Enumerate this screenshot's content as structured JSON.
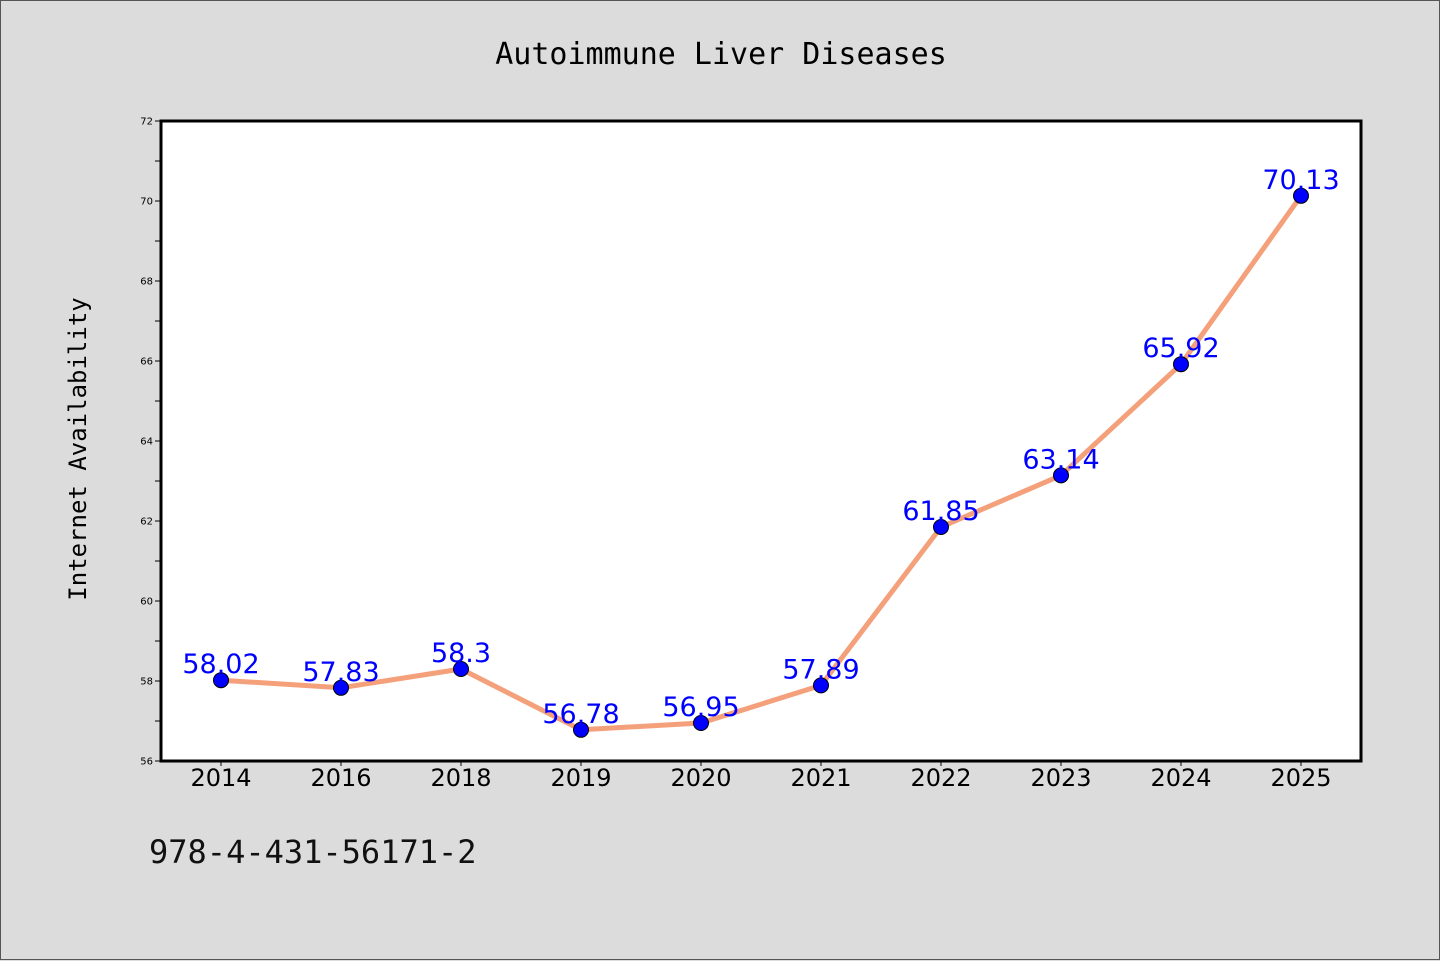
{
  "chart_data": {
    "type": "line",
    "title": "Autoimmune Liver Diseases",
    "xlabel": "",
    "ylabel": "Internet Availability",
    "categories": [
      "2014",
      "2016",
      "2018",
      "2019",
      "2020",
      "2021",
      "2022",
      "2023",
      "2024",
      "2025"
    ],
    "series": [
      {
        "values": [
          58.02,
          57.83,
          58.3,
          56.78,
          56.95,
          57.89,
          61.85,
          63.14,
          65.92,
          70.13
        ],
        "line_color": "#f4a07a",
        "marker_color": "#0000ff"
      }
    ],
    "data_labels": [
      "58.02",
      "57.83",
      "58.3",
      "56.78",
      "56.95",
      "57.89",
      "61.85",
      "63.14",
      "65.92",
      "70.13"
    ],
    "label_color": "#0000ff",
    "ylim": [
      56,
      72
    ],
    "y_ticks": [
      "56",
      "58",
      "60",
      "62",
      "64",
      "66",
      "68",
      "70",
      "72"
    ],
    "grid": false,
    "legend": "none"
  },
  "footer": {
    "isbn": "978-4-431-56171-2"
  }
}
